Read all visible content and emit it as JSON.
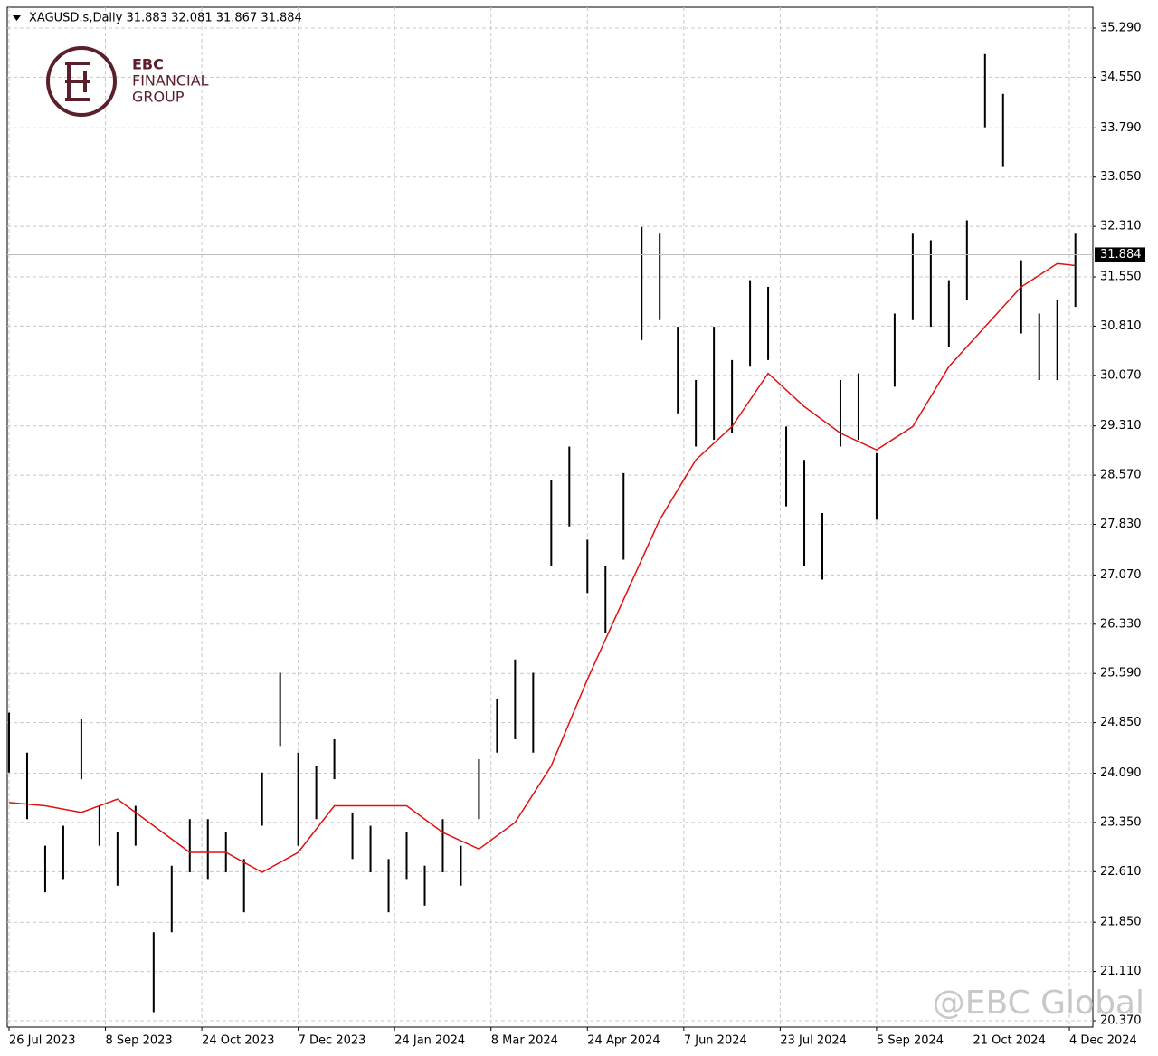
{
  "chart_data": {
    "type": "ohlc",
    "title": "XAGUSD.s,Daily  31.883 32.081 31.867 31.884",
    "brand": [
      "EBC",
      "FINANCIAL",
      "GROUP"
    ],
    "watermark": "@EBC Global",
    "grid": true,
    "xlim": [
      -0.6,
      359.8
    ],
    "ylim": [
      20.275,
      35.603
    ],
    "yticks": [
      {
        "value": 35.29,
        "label": "35.290"
      },
      {
        "value": 34.55,
        "label": "34.550"
      },
      {
        "value": 33.79,
        "label": "33.790"
      },
      {
        "value": 33.05,
        "label": "33.050"
      },
      {
        "value": 32.31,
        "label": "32.310"
      },
      {
        "value": 31.55,
        "label": "31.550"
      },
      {
        "value": 30.81,
        "label": "30.810"
      },
      {
        "value": 30.07,
        "label": "30.070"
      },
      {
        "value": 29.31,
        "label": "29.310"
      },
      {
        "value": 28.57,
        "label": "28.570"
      },
      {
        "value": 27.83,
        "label": "27.830"
      },
      {
        "value": 27.07,
        "label": "27.070"
      },
      {
        "value": 26.33,
        "label": "26.330"
      },
      {
        "value": 25.59,
        "label": "25.590"
      },
      {
        "value": 24.85,
        "label": "24.850"
      },
      {
        "value": 24.09,
        "label": "24.090"
      },
      {
        "value": 23.35,
        "label": "23.350"
      },
      {
        "value": 22.61,
        "label": "22.610"
      },
      {
        "value": 21.85,
        "label": "21.850"
      },
      {
        "value": 21.11,
        "label": "21.110"
      },
      {
        "value": 20.37,
        "label": "20.370"
      }
    ],
    "xticks": [
      {
        "value": 0,
        "label": "26 Jul 2023"
      },
      {
        "value": 32,
        "label": "8 Sep 2023"
      },
      {
        "value": 64,
        "label": "24 Oct 2023"
      },
      {
        "value": 96,
        "label": "7 Dec 2023"
      },
      {
        "value": 128,
        "label": "24 Jan 2024"
      },
      {
        "value": 160,
        "label": "8 Mar 2024"
      },
      {
        "value": 192,
        "label": "24 Apr 2024"
      },
      {
        "value": 224,
        "label": "7 Jun 2024"
      },
      {
        "value": 256,
        "label": "23 Jul 2024"
      },
      {
        "value": 288,
        "label": "5 Sep 2024"
      },
      {
        "value": 320,
        "label": "21 Oct 2024"
      },
      {
        "value": 352,
        "label": "4 Dec 2024"
      }
    ],
    "last_price": {
      "value": 31.884,
      "label": "31.884"
    },
    "bars": {
      "color": "#000000",
      "x": [
        0,
        6,
        12,
        18,
        24,
        30,
        36,
        42,
        48,
        54,
        60,
        66,
        72,
        78,
        84,
        90,
        96,
        102,
        108,
        114,
        120,
        126,
        132,
        138,
        144,
        150,
        156,
        162,
        168,
        174,
        180,
        186,
        192,
        198,
        204,
        210,
        216,
        222,
        228,
        234,
        240,
        246,
        252,
        258,
        264,
        270,
        276,
        282,
        288,
        294,
        300,
        306,
        312,
        318,
        324,
        330,
        336,
        342,
        348,
        354
      ],
      "high": [
        25.0,
        24.4,
        23.0,
        23.3,
        24.9,
        23.6,
        23.2,
        23.6,
        21.7,
        22.7,
        23.4,
        23.4,
        23.2,
        22.8,
        24.1,
        25.6,
        24.4,
        24.2,
        24.6,
        23.5,
        23.3,
        22.8,
        23.2,
        22.7,
        23.4,
        23.0,
        24.3,
        25.2,
        25.8,
        25.6,
        28.5,
        29.0,
        27.6,
        27.2,
        28.6,
        32.3,
        32.2,
        30.8,
        30.0,
        30.8,
        30.3,
        31.5,
        31.4,
        29.3,
        28.8,
        28.0,
        30.0,
        30.1,
        28.9,
        31.0,
        32.2,
        32.1,
        31.5,
        32.4,
        34.9,
        34.3,
        31.8,
        31.0,
        31.2,
        32.2
      ],
      "low": [
        24.1,
        23.4,
        22.3,
        22.5,
        24.0,
        23.0,
        22.4,
        23.0,
        20.5,
        21.7,
        22.6,
        22.5,
        22.6,
        22.0,
        23.3,
        24.5,
        23.0,
        23.4,
        24.0,
        22.8,
        22.6,
        22.0,
        22.5,
        22.1,
        22.6,
        22.4,
        23.4,
        24.4,
        24.6,
        24.4,
        27.2,
        27.8,
        26.8,
        26.2,
        27.3,
        30.6,
        30.9,
        29.5,
        29.0,
        29.1,
        29.2,
        30.2,
        30.3,
        28.1,
        27.2,
        27.0,
        29.0,
        29.1,
        27.9,
        29.9,
        30.9,
        30.8,
        30.5,
        31.2,
        33.8,
        33.2,
        30.7,
        30.0,
        30.0,
        31.1
      ]
    },
    "ma": {
      "color": "#e01010",
      "x": [
        0,
        12,
        24,
        36,
        48,
        60,
        72,
        84,
        96,
        108,
        120,
        132,
        144,
        156,
        168,
        180,
        192,
        204,
        216,
        228,
        240,
        252,
        264,
        276,
        288,
        300,
        312,
        324,
        336,
        348,
        354
      ],
      "values": [
        23.65,
        23.6,
        23.5,
        23.7,
        23.3,
        22.9,
        22.9,
        22.6,
        22.9,
        23.6,
        23.6,
        23.6,
        23.2,
        22.95,
        23.35,
        24.2,
        25.5,
        26.7,
        27.9,
        28.8,
        29.3,
        30.1,
        29.6,
        29.2,
        28.95,
        29.3,
        30.2,
        30.8,
        31.4,
        31.75,
        31.72
      ]
    }
  }
}
